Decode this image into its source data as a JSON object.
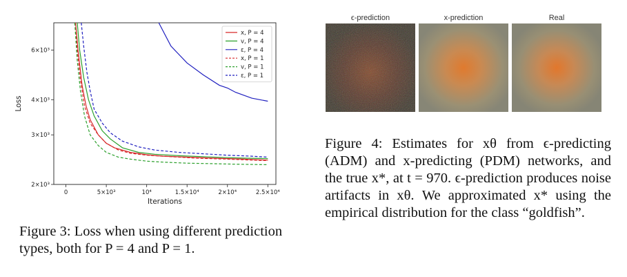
{
  "figure3": {
    "caption": "Figure 3: Loss when using different prediction types, both for P = 4 and P = 1.",
    "chart_data": {
      "type": "line",
      "xlabel": "Iterations",
      "ylabel": "Loss",
      "y_scale": "log",
      "xlim": [
        -1500,
        26000
      ],
      "ylim": [
        2000,
        7500
      ],
      "x_tick_labels": [
        "0",
        "5×10³",
        "10⁴",
        "1.5×10⁴",
        "2×10⁴",
        "2.5×10⁴"
      ],
      "x_tick_values": [
        0,
        5000,
        10000,
        15000,
        20000,
        25000
      ],
      "y_tick_labels": [
        "2×10³",
        "3×10³",
        "4×10³",
        "6×10³"
      ],
      "y_tick_values": [
        2000,
        3000,
        4000,
        6000
      ],
      "legend_position": "top-right",
      "series": [
        {
          "name": "x, P = 4",
          "color": "#d62728",
          "dash": false,
          "x": [
            1200,
            1500,
            2000,
            2500,
            3000,
            4000,
            5000,
            6000,
            8000,
            10000,
            12000,
            15000,
            18000,
            20000,
            22000,
            25000
          ],
          "y": [
            7500,
            6000,
            4500,
            3800,
            3400,
            3000,
            2800,
            2700,
            2600,
            2550,
            2520,
            2500,
            2480,
            2470,
            2460,
            2440
          ]
        },
        {
          "name": "v, P = 4",
          "color": "#2ca02c",
          "dash": false,
          "x": [
            1400,
            1700,
            2200,
            2800,
            3500,
            4500,
            5500,
            7000,
            9000,
            11000,
            14000,
            17000,
            20000,
            22000,
            25000
          ],
          "y": [
            7500,
            6000,
            4800,
            4000,
            3500,
            3100,
            2900,
            2700,
            2600,
            2560,
            2530,
            2510,
            2490,
            2480,
            2470
          ]
        },
        {
          "name": "ε, P = 4",
          "color": "#1f1fbf",
          "dash": false,
          "x": [
            11500,
            13000,
            15000,
            17000,
            19000,
            20000,
            21000,
            22000,
            23000,
            24000,
            25000
          ],
          "y": [
            7500,
            6200,
            5400,
            4900,
            4500,
            4400,
            4250,
            4150,
            4050,
            4000,
            3950
          ]
        },
        {
          "name": "x, P = 1",
          "color": "#d62728",
          "dash": true,
          "x": [
            1100,
            1400,
            1800,
            2300,
            3000,
            4000,
            5000,
            6500,
            8000,
            10000,
            13000,
            16000,
            20000,
            23000,
            25000
          ],
          "y": [
            7500,
            6000,
            4700,
            3800,
            3300,
            3000,
            2800,
            2650,
            2580,
            2540,
            2510,
            2480,
            2460,
            2440,
            2430
          ]
        },
        {
          "name": "v, P = 1",
          "color": "#2ca02c",
          "dash": true,
          "x": [
            1100,
            1400,
            1800,
            2300,
            3000,
            4000,
            5000,
            6500,
            8000,
            10000,
            12000,
            15000,
            18000,
            21000,
            25000
          ],
          "y": [
            7500,
            5500,
            4300,
            3500,
            3000,
            2750,
            2600,
            2500,
            2460,
            2420,
            2400,
            2380,
            2370,
            2360,
            2350
          ]
        },
        {
          "name": "ε, P = 1",
          "color": "#1f1fbf",
          "dash": true,
          "x": [
            1900,
            2200,
            2600,
            3000,
            3500,
            4500,
            5500,
            7000,
            9000,
            11000,
            14000,
            17000,
            20000,
            23000,
            25000
          ],
          "y": [
            7500,
            6200,
            5000,
            4300,
            3700,
            3300,
            3050,
            2850,
            2720,
            2650,
            2600,
            2570,
            2540,
            2520,
            2500
          ]
        }
      ]
    }
  },
  "figure4": {
    "panels": [
      {
        "label": "ϵ-prediction"
      },
      {
        "label": "x-prediction"
      },
      {
        "label": "Real"
      }
    ],
    "caption": "Figure 4: Estimates for xθ from ϵ-predicting (ADM) and x-predicting (PDM) networks, and the true x*, at t = 970. ϵ-prediction produces noise artifacts in xθ. We approximated x* using the empirical distribution for the class “goldfish”."
  }
}
